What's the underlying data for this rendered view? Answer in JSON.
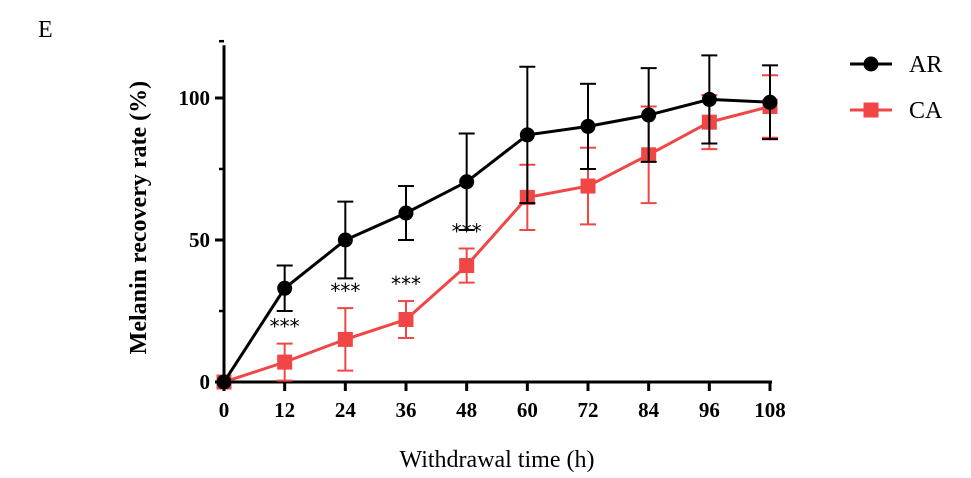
{
  "panel_label": "E",
  "chart_data": {
    "type": "line",
    "title": "",
    "xlabel": "Withdrawal time (h)",
    "ylabel": "Melanin recovery rate (%)",
    "x": [
      0,
      12,
      24,
      36,
      48,
      60,
      72,
      84,
      96,
      108
    ],
    "xticks": [
      "0",
      "12",
      "24",
      "36",
      "48",
      "60",
      "72",
      "84",
      "96",
      "108"
    ],
    "yticks": [
      "0",
      "50",
      "100"
    ],
    "xlim": [
      0,
      108
    ],
    "ylim": [
      0,
      120
    ],
    "legend_position": "top-right",
    "series": [
      {
        "name": "AR",
        "color": "#000000",
        "marker": "circle",
        "values": [
          0,
          33,
          50,
          59.5,
          70.5,
          87,
          90,
          94,
          99.5,
          98.5
        ],
        "error": [
          0,
          8,
          13.5,
          9.5,
          17,
          24,
          15,
          16.5,
          15.5,
          13
        ]
      },
      {
        "name": "CA",
        "color": "#f04646",
        "marker": "square",
        "values": [
          0,
          7,
          15,
          22,
          41,
          65,
          69,
          80,
          91.5,
          97
        ],
        "error": [
          0,
          6.5,
          11,
          6.5,
          6,
          11.5,
          13.5,
          17,
          9.5,
          11
        ]
      }
    ],
    "annotations": [
      {
        "x": 12,
        "text": "***"
      },
      {
        "x": 24,
        "text": "***"
      },
      {
        "x": 36,
        "text": "***"
      },
      {
        "x": 48,
        "text": "***"
      }
    ]
  }
}
